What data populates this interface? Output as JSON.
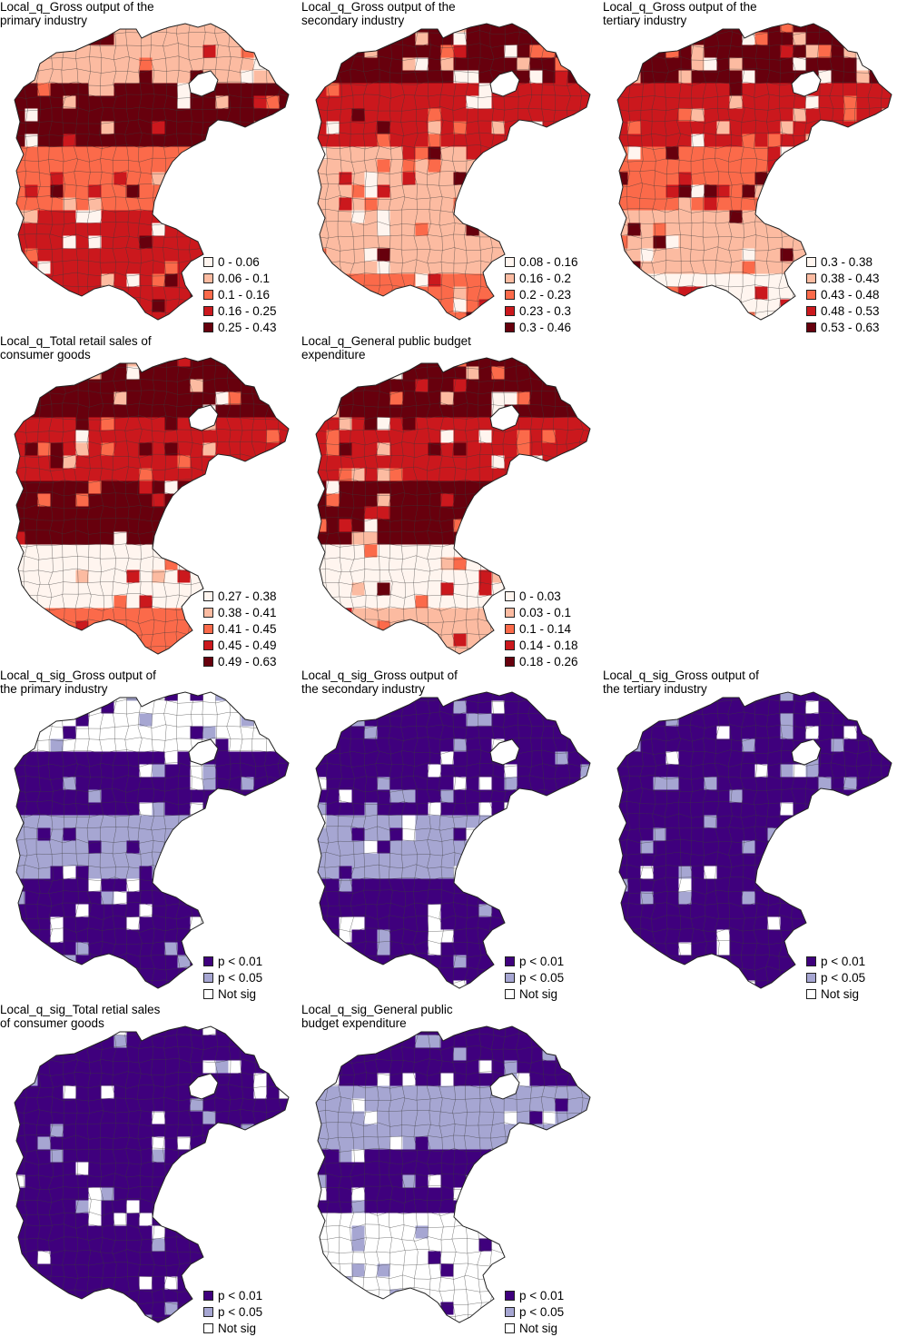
{
  "panels": [
    {
      "title": "Local_q_Gross output of the\nprimary industry",
      "legend": [
        {
          "label": "0 - 0.06",
          "color": "#fff5ef"
        },
        {
          "label": "0.06 - 0.1",
          "color": "#fcbba1"
        },
        {
          "label": "0.1 - 0.16",
          "color": "#fb6a4a"
        },
        {
          "label": "0.16 - 0.25",
          "color": "#cb181d"
        },
        {
          "label": "0.25 - 0.43",
          "color": "#67000d"
        }
      ],
      "band_colors": [
        "#fcbba1",
        "#67000d",
        "#fb6a4a",
        "#cb181d",
        "#cb181d"
      ]
    },
    {
      "title": "Local_q_Gross output of the\nsecondary industry",
      "legend": [
        {
          "label": "0.08 - 0.16",
          "color": "#fff5ef"
        },
        {
          "label": "0.16 - 0.2",
          "color": "#fcbba1"
        },
        {
          "label": "0.2 - 0.23",
          "color": "#fb6a4a"
        },
        {
          "label": "0.23 - 0.3",
          "color": "#cb181d"
        },
        {
          "label": "0.3 - 0.46",
          "color": "#67000d"
        }
      ],
      "band_colors": [
        "#67000d",
        "#cb181d",
        "#fcbba1",
        "#fcbba1",
        "#fb6a4a"
      ]
    },
    {
      "title": "Local_q_Gross output of the\ntertiary industry",
      "legend": [
        {
          "label": "0.3 - 0.38",
          "color": "#fff5ef"
        },
        {
          "label": "0.38 - 0.43",
          "color": "#fcbba1"
        },
        {
          "label": "0.43 - 0.48",
          "color": "#fb6a4a"
        },
        {
          "label": "0.48 - 0.53",
          "color": "#cb181d"
        },
        {
          "label": "0.53 - 0.63",
          "color": "#67000d"
        }
      ],
      "band_colors": [
        "#67000d",
        "#cb181d",
        "#fb6a4a",
        "#fcbba1",
        "#fff5ef"
      ]
    },
    {
      "title": "Local_q_Total retail sales of\nconsumer goods",
      "legend": [
        {
          "label": "0.27 - 0.38",
          "color": "#fff5ef"
        },
        {
          "label": "0.38 - 0.41",
          "color": "#fcbba1"
        },
        {
          "label": "0.41 - 0.45",
          "color": "#fb6a4a"
        },
        {
          "label": "0.45 - 0.49",
          "color": "#cb181d"
        },
        {
          "label": "0.49 - 0.63",
          "color": "#67000d"
        }
      ],
      "band_colors": [
        "#67000d",
        "#cb181d",
        "#67000d",
        "#fff5ef",
        "#fb6a4a"
      ]
    },
    {
      "title": "Local_q_General public budget\nexpenditure",
      "legend": [
        {
          "label": "0 - 0.03",
          "color": "#fff5ef"
        },
        {
          "label": "0.03 - 0.1",
          "color": "#fcbba1"
        },
        {
          "label": "0.1 - 0.14",
          "color": "#fb6a4a"
        },
        {
          "label": "0.14 - 0.18",
          "color": "#cb181d"
        },
        {
          "label": "0.18 - 0.26",
          "color": "#67000d"
        }
      ],
      "band_colors": [
        "#67000d",
        "#cb181d",
        "#67000d",
        "#fff5ef",
        "#fcbba1"
      ]
    },
    {
      "title": "Local_q_sig_Gross output of\nthe primary industry",
      "legend": [
        {
          "label": "p < 0.01",
          "color": "#3f007d"
        },
        {
          "label": "p < 0.05",
          "color": "#a6a6d2"
        },
        {
          "label": "Not sig",
          "color": "#ffffff"
        }
      ],
      "band_colors": [
        "#ffffff",
        "#3f007d",
        "#a6a6d2",
        "#3f007d",
        "#3f007d"
      ]
    },
    {
      "title": "Local_q_sig_Gross output of\nthe secondary industry",
      "legend": [
        {
          "label": "p < 0.01",
          "color": "#3f007d"
        },
        {
          "label": "p < 0.05",
          "color": "#a6a6d2"
        },
        {
          "label": "Not sig",
          "color": "#ffffff"
        }
      ],
      "band_colors": [
        "#3f007d",
        "#3f007d",
        "#a6a6d2",
        "#3f007d",
        "#3f007d"
      ]
    },
    {
      "title": "Local_q_sig_Gross output of\nthe tertiary industry",
      "legend": [
        {
          "label": "p < 0.01",
          "color": "#3f007d"
        },
        {
          "label": "p < 0.05",
          "color": "#a6a6d2"
        },
        {
          "label": "Not sig",
          "color": "#ffffff"
        }
      ],
      "band_colors": [
        "#3f007d",
        "#3f007d",
        "#3f007d",
        "#3f007d",
        "#3f007d"
      ]
    },
    {
      "title": "Local_q_sig_Total retial sales\nof consumer goods",
      "legend": [
        {
          "label": "p < 0.01",
          "color": "#3f007d"
        },
        {
          "label": "p < 0.05",
          "color": "#a6a6d2"
        },
        {
          "label": "Not sig",
          "color": "#ffffff"
        }
      ],
      "band_colors": [
        "#3f007d",
        "#3f007d",
        "#3f007d",
        "#3f007d",
        "#3f007d"
      ]
    },
    {
      "title": "Local_q_sig_General public\nbudget expenditure",
      "legend": [
        {
          "label": "p < 0.01",
          "color": "#3f007d"
        },
        {
          "label": "p < 0.05",
          "color": "#a6a6d2"
        },
        {
          "label": "Not sig",
          "color": "#ffffff"
        }
      ],
      "band_colors": [
        "#3f007d",
        "#a6a6d2",
        "#3f007d",
        "#ffffff",
        "#ffffff"
      ]
    }
  ]
}
